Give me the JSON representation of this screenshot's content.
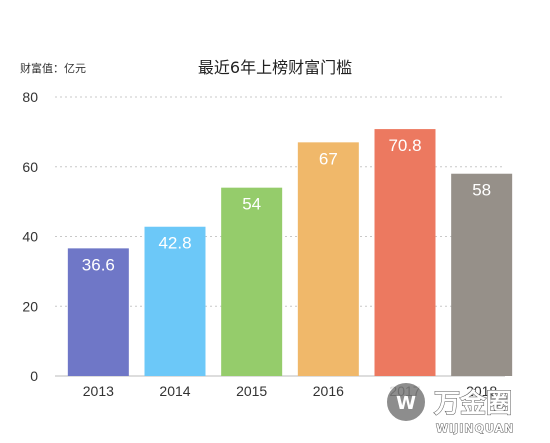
{
  "chart_data": {
    "type": "bar",
    "title": "最近6年上榜财富门槛",
    "ylabel": "财富值：亿元",
    "xlabel": "",
    "categories": [
      "2013",
      "2014",
      "2015",
      "2016",
      "2017",
      "2018"
    ],
    "values": [
      36.6,
      42.8,
      54,
      67,
      70.8,
      58
    ],
    "value_labels": [
      "36.6",
      "42.8",
      "54",
      "67",
      "70.8",
      "58"
    ],
    "colors": [
      "#6f77c7",
      "#6cc8f8",
      "#95cc6b",
      "#f0b86a",
      "#ec7960",
      "#969089"
    ],
    "ylim": [
      0,
      80
    ],
    "yticks": [
      "0",
      "20",
      "40",
      "60",
      "80"
    ],
    "ytick_values": [
      0,
      20,
      40,
      60,
      80
    ],
    "grid": true,
    "legend": "none"
  },
  "watermark": {
    "text": "万金圈",
    "subtext": "WIJINQUAN"
  }
}
